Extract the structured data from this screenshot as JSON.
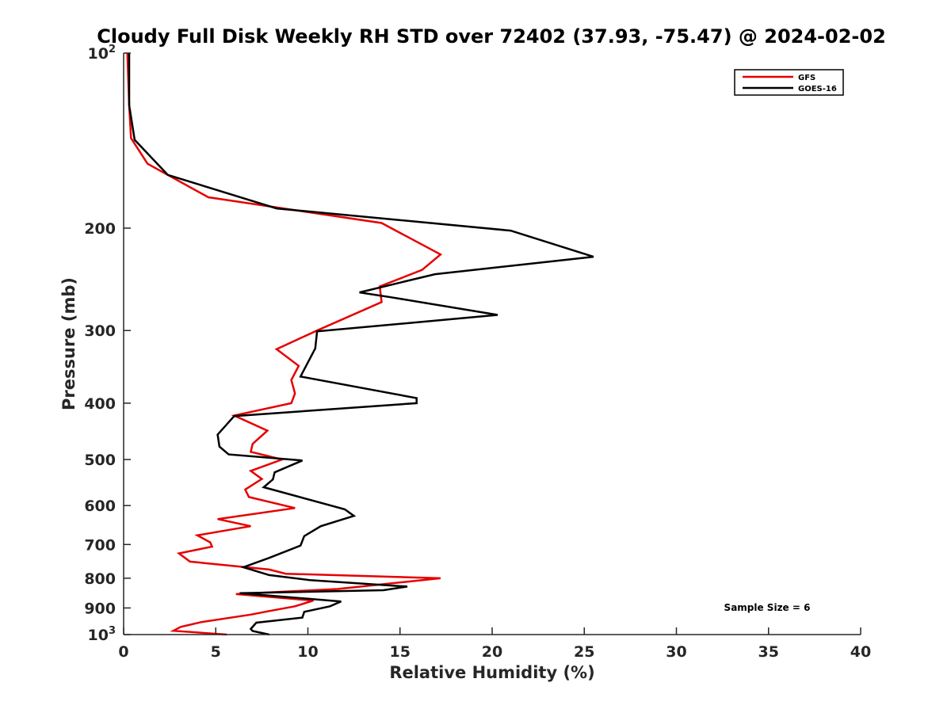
{
  "chart_data": {
    "type": "line",
    "title": "Cloudy Full Disk Weekly RH STD over 72402 (37.93, -75.47) @ 2024-02-02",
    "xlabel": "Relative Humidity (%)",
    "ylabel": "Pressure (mb)",
    "xlim": [
      0,
      40
    ],
    "ylim": [
      100,
      1000
    ],
    "yscale": "log",
    "y_reversed": true,
    "grid": false,
    "legend_position": "top-right",
    "x_ticks": [
      "0",
      "5",
      "10",
      "15",
      "20",
      "25",
      "30",
      "35",
      "40"
    ],
    "y_ticks": [
      {
        "base": "10",
        "exp": "2",
        "value": 100
      },
      {
        "base": "200",
        "exp": "",
        "value": 200
      },
      {
        "base": "300",
        "exp": "",
        "value": 300
      },
      {
        "base": "400",
        "exp": "",
        "value": 400
      },
      {
        "base": "500",
        "exp": "",
        "value": 500
      },
      {
        "base": "600",
        "exp": "",
        "value": 600
      },
      {
        "base": "700",
        "exp": "",
        "value": 700
      },
      {
        "base": "800",
        "exp": "",
        "value": 800
      },
      {
        "base": "900",
        "exp": "",
        "value": 900
      },
      {
        "base": "10",
        "exp": "3",
        "value": 1000
      }
    ],
    "annotation": "Sample Size = 6",
    "series": [
      {
        "name": "GFS",
        "color": "#e60000",
        "points": [
          [
            0.2,
            100
          ],
          [
            0.3,
            123
          ],
          [
            0.4,
            140
          ],
          [
            1.3,
            155
          ],
          [
            4.6,
            177
          ],
          [
            14,
            196
          ],
          [
            17.2,
            222
          ],
          [
            16.2,
            236
          ],
          [
            13.9,
            252
          ],
          [
            14,
            268
          ],
          [
            10.5,
            300
          ],
          [
            8.3,
            323
          ],
          [
            9.5,
            345
          ],
          [
            9.1,
            365
          ],
          [
            9.3,
            385
          ],
          [
            9.1,
            400
          ],
          [
            6,
            420
          ],
          [
            7.8,
            446
          ],
          [
            7,
            470
          ],
          [
            6.9,
            485
          ],
          [
            8.6,
            500
          ],
          [
            6.9,
            523
          ],
          [
            7.5,
            540
          ],
          [
            6.6,
            563
          ],
          [
            6.8,
            580
          ],
          [
            9.3,
            606
          ],
          [
            5.1,
            633
          ],
          [
            6.9,
            651
          ],
          [
            4,
            675
          ],
          [
            4.7,
            694
          ],
          [
            4.8,
            706
          ],
          [
            3,
            725
          ],
          [
            3.6,
            749
          ],
          [
            7.9,
            773
          ],
          [
            8.8,
            786
          ],
          [
            17.2,
            800
          ],
          [
            11.6,
            835
          ],
          [
            6.1,
            852
          ],
          [
            10.3,
            874
          ],
          [
            9.3,
            894
          ],
          [
            7.9,
            911
          ],
          [
            6.9,
            924
          ],
          [
            4.2,
            952
          ],
          [
            3.1,
            970
          ],
          [
            2.7,
            985
          ],
          [
            5.6,
            1000
          ]
        ]
      },
      {
        "name": "GOES-16",
        "color": "#000000",
        "points": [
          [
            0.3,
            100
          ],
          [
            0.3,
            123
          ],
          [
            0.6,
            141
          ],
          [
            2.4,
            162
          ],
          [
            8.3,
            185
          ],
          [
            21,
            202
          ],
          [
            25.5,
            224
          ],
          [
            16.9,
            240
          ],
          [
            12.8,
            258
          ],
          [
            14.5,
            263
          ],
          [
            20.3,
            282
          ],
          [
            10.5,
            301
          ],
          [
            10.4,
            322
          ],
          [
            9.6,
            360
          ],
          [
            15.9,
            392
          ],
          [
            15.9,
            400
          ],
          [
            6,
            421
          ],
          [
            5.1,
            453
          ],
          [
            5.2,
            475
          ],
          [
            5.7,
            490
          ],
          [
            9.7,
            502
          ],
          [
            8.2,
            526
          ],
          [
            8.1,
            541
          ],
          [
            7.6,
            558
          ],
          [
            12,
            609
          ],
          [
            12.5,
            625
          ],
          [
            10.7,
            651
          ],
          [
            9.8,
            677
          ],
          [
            9.6,
            703
          ],
          [
            7.9,
            738
          ],
          [
            6.5,
            766
          ],
          [
            7.9,
            790
          ],
          [
            10.1,
            806
          ],
          [
            15.4,
            827
          ],
          [
            14.1,
            839
          ],
          [
            6.3,
            849
          ],
          [
            11.8,
            877
          ],
          [
            11.2,
            894
          ],
          [
            9.8,
            914
          ],
          [
            9.7,
            935
          ],
          [
            7.2,
            954
          ],
          [
            6.9,
            978
          ],
          [
            7,
            986
          ],
          [
            7.9,
            1000
          ]
        ]
      }
    ]
  }
}
